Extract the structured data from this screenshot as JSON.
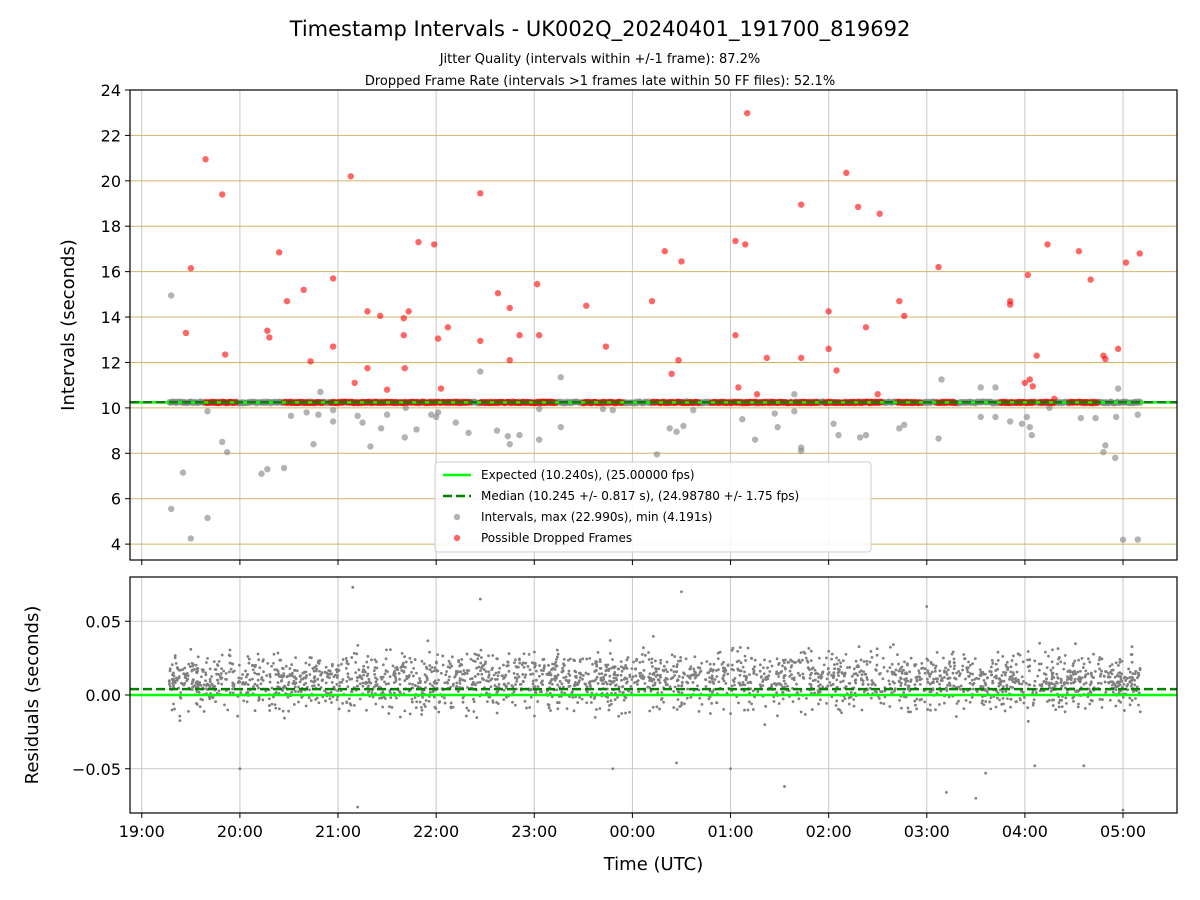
{
  "title": "Timestamp Intervals - UK002Q_20240401_191700_819692",
  "subtitle_lines": [
    "Jitter Quality (intervals within +/-1 frame): 87.2%",
    "Dropped Frame Rate (intervals >1 frames late within 50 FF files): 52.1%"
  ],
  "colors": {
    "expected": "#00ff00",
    "median": "#008000",
    "intervals": "#808080",
    "dropped": "#ff0000",
    "hgrid": "#d2b46a",
    "grid": "#c8c8c8"
  },
  "chart_data": [
    {
      "type": "scatter",
      "panel": "top",
      "xlabel": "",
      "ylabel": "Intervals (seconds)",
      "x_units": "hours since 19:00 UTC on the displayed time axis",
      "xlim": [
        -0.12,
        10.55
      ],
      "ylim": [
        3.3,
        24
      ],
      "y_ticks": [
        4,
        6,
        8,
        10,
        12,
        14,
        16,
        18,
        20,
        22,
        24
      ],
      "x_ticks": [
        0,
        1,
        2,
        3,
        4,
        5,
        6,
        7,
        8,
        9,
        10
      ],
      "x_tick_labels": [
        "19:00",
        "20:00",
        "21:00",
        "22:00",
        "23:00",
        "00:00",
        "01:00",
        "02:00",
        "03:00",
        "04:00",
        "05:00"
      ],
      "grid": true,
      "legend_position": "bottom-center",
      "series": [
        {
          "name": "Expected (10.240s), (25.00000 fps)",
          "kind": "hline",
          "y": 10.24
        },
        {
          "name": "Median (10.245 +/- 0.817 s), (24.98780 +/- 1.75 fps)",
          "kind": "hline-dashed",
          "y": 10.245
        },
        {
          "name": "Intervals, max (22.990s), min (4.191s)",
          "kind": "points",
          "baseline": {
            "x_start": 0.28,
            "x_end": 10.18,
            "y": 10.24
          },
          "points": [
            [
              0.3,
              14.95
            ],
            [
              0.3,
              5.55
            ],
            [
              0.42,
              7.15
            ],
            [
              0.5,
              4.25
            ],
            [
              0.67,
              9.85
            ],
            [
              0.67,
              5.15
            ],
            [
              0.82,
              8.5
            ],
            [
              0.87,
              8.05
            ],
            [
              1.22,
              7.1
            ],
            [
              1.28,
              7.3
            ],
            [
              1.45,
              7.35
            ],
            [
              1.52,
              9.65
            ],
            [
              1.68,
              9.8
            ],
            [
              1.75,
              8.4
            ],
            [
              1.8,
              9.7
            ],
            [
              1.82,
              10.7
            ],
            [
              1.95,
              9.4
            ],
            [
              1.95,
              9.9
            ],
            [
              2.2,
              9.65
            ],
            [
              2.25,
              9.35
            ],
            [
              2.33,
              8.3
            ],
            [
              2.44,
              9.1
            ],
            [
              2.5,
              9.7
            ],
            [
              2.68,
              8.7
            ],
            [
              2.69,
              10.0
            ],
            [
              2.8,
              9.05
            ],
            [
              2.95,
              9.7
            ],
            [
              3.0,
              9.6
            ],
            [
              3.02,
              9.8
            ],
            [
              3.2,
              9.35
            ],
            [
              3.33,
              8.9
            ],
            [
              3.45,
              11.6
            ],
            [
              3.62,
              9.0
            ],
            [
              3.73,
              8.75
            ],
            [
              3.75,
              8.4
            ],
            [
              3.85,
              8.8
            ],
            [
              4.05,
              8.6
            ],
            [
              4.05,
              9.95
            ],
            [
              4.27,
              11.35
            ],
            [
              4.27,
              9.15
            ],
            [
              4.7,
              9.95
            ],
            [
              4.8,
              9.9
            ],
            [
              5.25,
              7.95
            ],
            [
              5.38,
              9.1
            ],
            [
              5.45,
              8.95
            ],
            [
              5.52,
              9.2
            ],
            [
              5.62,
              9.9
            ],
            [
              6.12,
              9.5
            ],
            [
              6.25,
              8.6
            ],
            [
              6.45,
              9.75
            ],
            [
              6.48,
              9.15
            ],
            [
              6.65,
              10.6
            ],
            [
              6.65,
              9.85
            ],
            [
              6.72,
              8.1
            ],
            [
              6.72,
              8.25
            ],
            [
              7.05,
              9.3
            ],
            [
              7.1,
              8.8
            ],
            [
              7.32,
              8.7
            ],
            [
              7.38,
              8.8
            ],
            [
              7.72,
              9.1
            ],
            [
              7.77,
              9.25
            ],
            [
              8.15,
              11.25
            ],
            [
              8.12,
              8.65
            ],
            [
              8.55,
              10.9
            ],
            [
              8.55,
              9.6
            ],
            [
              8.7,
              10.9
            ],
            [
              8.7,
              9.6
            ],
            [
              8.85,
              9.4
            ],
            [
              8.97,
              9.3
            ],
            [
              9.02,
              9.6
            ],
            [
              9.05,
              9.15
            ],
            [
              9.07,
              8.8
            ],
            [
              9.25,
              10.0
            ],
            [
              9.57,
              9.55
            ],
            [
              9.72,
              9.55
            ],
            [
              9.8,
              8.05
            ],
            [
              9.82,
              8.35
            ],
            [
              9.92,
              7.8
            ],
            [
              9.93,
              9.6
            ],
            [
              9.95,
              10.85
            ],
            [
              10.0,
              4.191
            ],
            [
              10.15,
              4.2
            ],
            [
              10.15,
              9.7
            ]
          ]
        },
        {
          "name": "Possible Dropped Frames",
          "kind": "points",
          "clusters": [
            [
              0.65,
              0.97
            ],
            [
              1.45,
              1.85
            ],
            [
              1.92,
              2.65
            ],
            [
              2.65,
              3.35
            ],
            [
              3.45,
              4.2
            ],
            [
              4.0,
              4.22
            ],
            [
              4.5,
              4.9
            ],
            [
              5.2,
              5.68
            ],
            [
              5.8,
              6.2
            ],
            [
              6.15,
              6.62
            ],
            [
              6.65,
              6.9
            ],
            [
              6.95,
              7.42
            ],
            [
              7.42,
              7.55
            ],
            [
              7.7,
              7.95
            ],
            [
              8.1,
              8.3
            ],
            [
              8.75,
              8.88
            ],
            [
              8.9,
              9.1
            ],
            [
              9.15,
              9.3
            ],
            [
              9.45,
              9.75
            ]
          ],
          "points": [
            [
              0.45,
              13.3
            ],
            [
              0.5,
              16.15
            ],
            [
              0.65,
              20.95
            ],
            [
              0.82,
              19.4
            ],
            [
              0.85,
              12.35
            ],
            [
              1.3,
              13.1
            ],
            [
              1.28,
              13.4
            ],
            [
              1.4,
              16.85
            ],
            [
              1.48,
              14.7
            ],
            [
              1.65,
              15.2
            ],
            [
              1.72,
              12.05
            ],
            [
              1.95,
              12.7
            ],
            [
              1.95,
              15.7
            ],
            [
              2.13,
              20.2
            ],
            [
              2.17,
              11.1
            ],
            [
              2.3,
              14.25
            ],
            [
              2.3,
              11.75
            ],
            [
              2.43,
              14.05
            ],
            [
              2.5,
              10.8
            ],
            [
              2.67,
              13.95
            ],
            [
              2.67,
              13.2
            ],
            [
              2.68,
              11.75
            ],
            [
              2.72,
              14.25
            ],
            [
              2.82,
              17.3
            ],
            [
              2.98,
              17.2
            ],
            [
              3.02,
              13.05
            ],
            [
              3.05,
              10.85
            ],
            [
              3.12,
              13.55
            ],
            [
              3.45,
              12.95
            ],
            [
              3.45,
              19.45
            ],
            [
              3.63,
              15.05
            ],
            [
              3.75,
              14.4
            ],
            [
              3.75,
              12.1
            ],
            [
              3.85,
              13.2
            ],
            [
              4.03,
              15.45
            ],
            [
              4.05,
              13.2
            ],
            [
              4.53,
              14.5
            ],
            [
              4.73,
              12.7
            ],
            [
              5.2,
              14.7
            ],
            [
              5.33,
              16.9
            ],
            [
              5.4,
              11.5
            ],
            [
              5.47,
              12.1
            ],
            [
              5.5,
              16.45
            ],
            [
              6.05,
              17.35
            ],
            [
              6.05,
              13.2
            ],
            [
              6.08,
              10.9
            ],
            [
              6.15,
              17.2
            ],
            [
              6.17,
              22.98
            ],
            [
              6.27,
              10.6
            ],
            [
              6.37,
              12.2
            ],
            [
              6.72,
              18.95
            ],
            [
              6.72,
              12.2
            ],
            [
              7.0,
              14.25
            ],
            [
              7.0,
              12.6
            ],
            [
              7.08,
              11.65
            ],
            [
              7.18,
              20.35
            ],
            [
              7.3,
              18.85
            ],
            [
              7.38,
              13.55
            ],
            [
              7.52,
              18.55
            ],
            [
              7.5,
              10.6
            ],
            [
              7.72,
              14.7
            ],
            [
              7.77,
              14.05
            ],
            [
              8.12,
              16.2
            ],
            [
              8.85,
              14.7
            ],
            [
              8.85,
              14.55
            ],
            [
              9.0,
              11.1
            ],
            [
              9.05,
              11.25
            ],
            [
              9.08,
              10.95
            ],
            [
              9.03,
              15.85
            ],
            [
              9.12,
              12.3
            ],
            [
              9.23,
              17.2
            ],
            [
              9.3,
              10.4
            ],
            [
              9.55,
              16.9
            ],
            [
              9.67,
              15.65
            ],
            [
              9.8,
              12.3
            ],
            [
              9.82,
              12.15
            ],
            [
              9.95,
              12.6
            ],
            [
              10.03,
              16.4
            ],
            [
              10.17,
              16.8
            ]
          ]
        }
      ]
    },
    {
      "type": "scatter",
      "panel": "bottom",
      "xlabel": "Time (UTC)",
      "ylabel": "Residuals (seconds)",
      "xlim": [
        -0.12,
        10.55
      ],
      "ylim": [
        -0.08,
        0.08
      ],
      "y_ticks": [
        -0.05,
        0.0,
        0.05
      ],
      "y_tick_labels": [
        "−0.05",
        "0.00",
        "0.05"
      ],
      "x_ticks": [
        0,
        1,
        2,
        3,
        4,
        5,
        6,
        7,
        8,
        9,
        10
      ],
      "x_tick_labels": [
        "19:00",
        "20:00",
        "21:00",
        "22:00",
        "23:00",
        "00:00",
        "01:00",
        "02:00",
        "03:00",
        "04:00",
        "05:00"
      ],
      "grid": true,
      "series": [
        {
          "name": "Expected",
          "kind": "hline",
          "y": 0.0
        },
        {
          "name": "Median",
          "kind": "hline-dashed",
          "y": 0.004
        },
        {
          "name": "Residuals",
          "kind": "points",
          "distribution": {
            "x_start": 0.28,
            "x_end": 10.18,
            "count": 2600,
            "typical_range": [
              -0.03,
              0.05
            ]
          },
          "outliers": [
            [
              2.2,
              -0.076
            ],
            [
              1.0,
              -0.05
            ],
            [
              4.8,
              -0.05
            ],
            [
              5.45,
              -0.046
            ],
            [
              6.0,
              -0.05
            ],
            [
              8.2,
              -0.066
            ],
            [
              8.5,
              -0.07
            ],
            [
              8.6,
              -0.053
            ],
            [
              9.1,
              -0.048
            ],
            [
              9.6,
              -0.048
            ],
            [
              10.0,
              -0.078
            ],
            [
              2.15,
              0.073
            ],
            [
              5.5,
              0.07
            ],
            [
              3.45,
              0.065
            ],
            [
              8.0,
              0.06
            ],
            [
              6.55,
              -0.062
            ]
          ]
        }
      ]
    }
  ]
}
